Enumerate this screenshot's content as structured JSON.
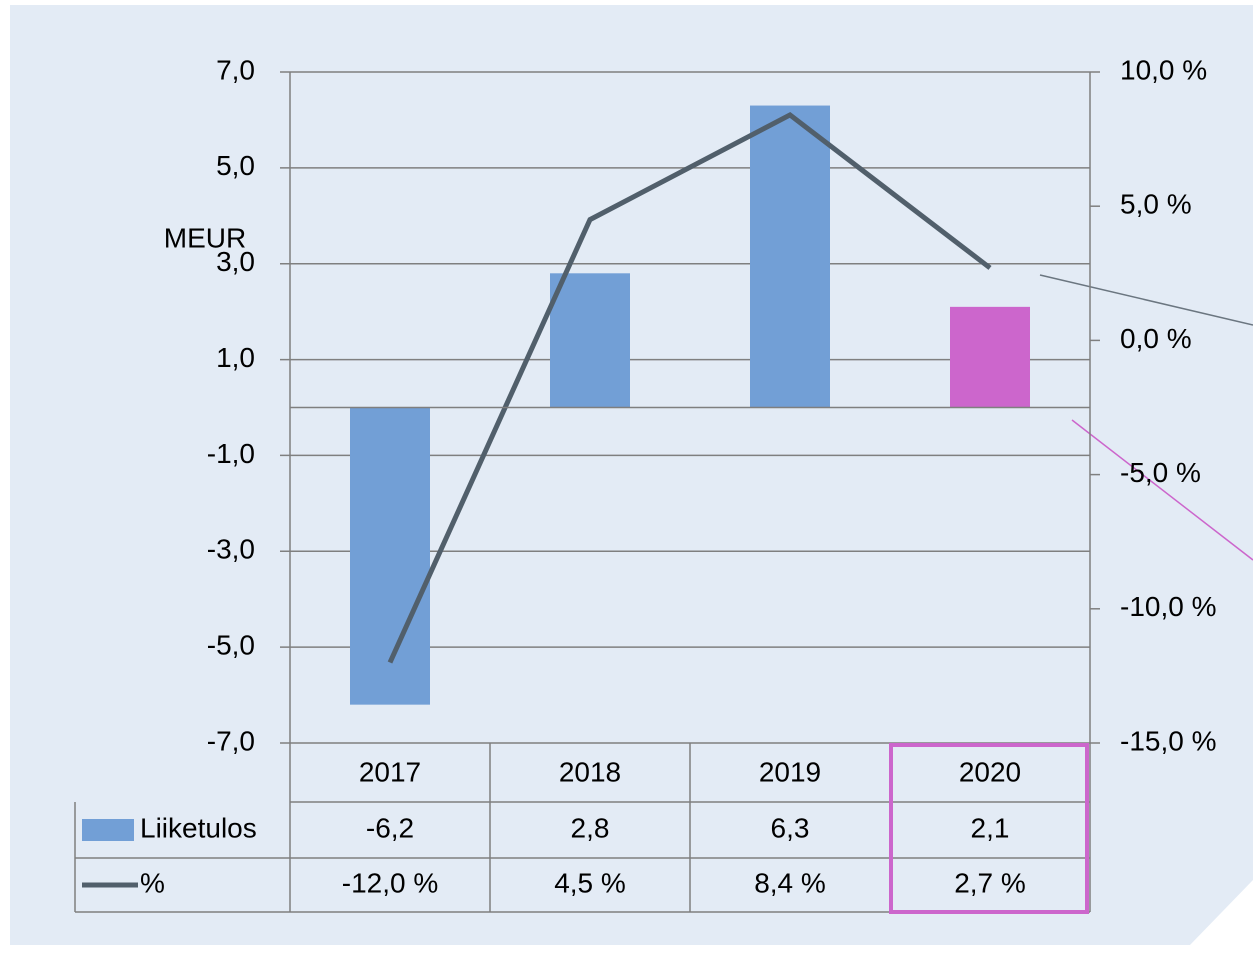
{
  "chart_data": {
    "type": "bar",
    "ylabel": "MEUR",
    "categories": [
      "2017",
      "2018",
      "2019",
      "2020"
    ],
    "series": [
      {
        "name": "Liiketulos",
        "color": "#729fd6",
        "colors": [
          "#729fd6",
          "#729fd6",
          "#729fd6",
          "#cc66cc"
        ],
        "values": [
          -6.2,
          2.8,
          6.3,
          2.1
        ],
        "value_labels": [
          "-6,2",
          "2,8",
          "6,3",
          "2,1"
        ]
      },
      {
        "name": "%",
        "type": "line",
        "axis": "y2",
        "color": "#515f6b",
        "values": [
          -12.0,
          4.5,
          8.4,
          2.7
        ],
        "value_labels": [
          "-12,0 %",
          "4,5 %",
          "8,4 %",
          "2,7 %"
        ]
      }
    ],
    "ylim": [
      -7,
      7
    ],
    "yticks": [
      {
        "value": -7,
        "label": "-7,0"
      },
      {
        "value": -5,
        "label": "-5,0"
      },
      {
        "value": -3,
        "label": "-3,0"
      },
      {
        "value": -1,
        "label": "-1,0"
      },
      {
        "value": 1,
        "label": "1,0"
      },
      {
        "value": 3,
        "label": "3,0"
      },
      {
        "value": 5,
        "label": "5,0"
      },
      {
        "value": 7,
        "label": "7,0"
      }
    ],
    "y2lim": [
      -15,
      10
    ],
    "y2ticks": [
      {
        "value": -15,
        "label": "-15,0 %"
      },
      {
        "value": -10,
        "label": "-10,0 %"
      },
      {
        "value": -5,
        "label": "-5,0 %"
      },
      {
        "value": 0,
        "label": "0,0 %"
      },
      {
        "value": 5,
        "label": "5,0 %"
      },
      {
        "value": 10,
        "label": "10,0 %"
      }
    ],
    "grid": true
  }
}
